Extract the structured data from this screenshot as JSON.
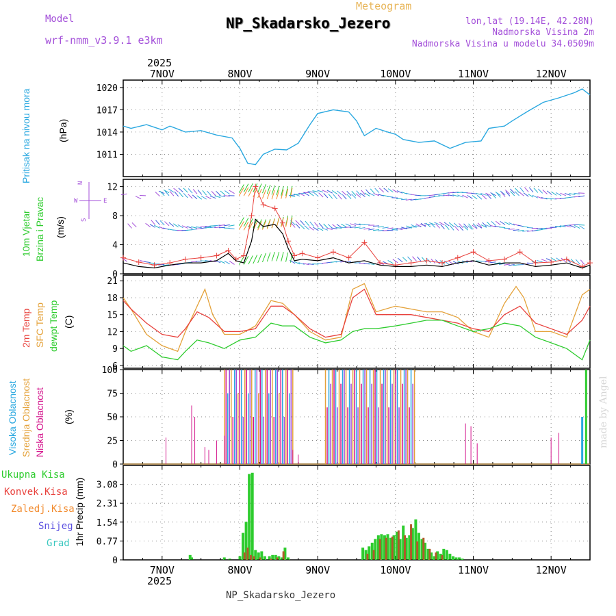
{
  "header": {
    "title": "NP_Skadarsko_Jezero",
    "subtitle": "Meteogram",
    "model_label": "Model",
    "model_name": "wrf-nmm_v3.9.1 e3km",
    "lonlat": "lon,lat (19.14E, 42.28N)",
    "elevation": "Nadmorska Visina 2m",
    "model_elevation": "Nadmorska Visina u modelu 34.0509m",
    "footer": "NP_Skadarsko_Jezero",
    "watermark": "made by Angel",
    "year_top": "2025",
    "year_bottom": "2025"
  },
  "colors": {
    "pressure": "#2aa8e0",
    "t2m": "#e8413c",
    "tsfc": "#e4a23a",
    "dewpoint": "#2ecc2e",
    "high_cloud": "#2aa8e0",
    "mid_cloud": "#e4a23a",
    "low_cloud": "#d4148c",
    "total_precip": "#2ecc2e",
    "conv_precip": "#e8413c",
    "frozen_precip": "#f28a2c",
    "snow": "#5a50e0",
    "hail": "#3cc8c0",
    "wind_speed": "#000000",
    "gust": "#e8413c",
    "purple": "#a34fd9"
  },
  "chart_data": [
    {
      "type": "line",
      "title": "Pritisak na nivou mora",
      "ylabel": "(hPa)",
      "ylim": [
        1008,
        1021
      ],
      "yticks": [
        "1011",
        "1014",
        "1017",
        "1020"
      ],
      "x_unit": "days since 2025-11-07 00:00",
      "xlim": [
        -0.5,
        5.5
      ],
      "xticks": [
        "7NOV",
        "8NOV",
        "9NOV",
        "10NOV",
        "11NOV",
        "12NOV"
      ],
      "series": [
        {
          "name": "MSLP",
          "x": [
            -0.5,
            -0.4,
            -0.2,
            0,
            0.1,
            0.3,
            0.5,
            0.7,
            0.9,
            1.0,
            1.1,
            1.2,
            1.3,
            1.45,
            1.6,
            1.75,
            1.9,
            2.0,
            2.2,
            2.4,
            2.5,
            2.6,
            2.75,
            2.9,
            3.0,
            3.1,
            3.3,
            3.5,
            3.7,
            3.9,
            4.1,
            4.2,
            4.4,
            4.5,
            4.7,
            4.9,
            5.1,
            5.3,
            5.4,
            5.5
          ],
          "values": [
            1014.8,
            1014.5,
            1015.0,
            1014.3,
            1014.8,
            1014.0,
            1014.2,
            1013.6,
            1013.2,
            1011.8,
            1009.8,
            1009.6,
            1011.0,
            1011.7,
            1011.6,
            1012.5,
            1015.0,
            1016.5,
            1017.0,
            1016.7,
            1015.5,
            1013.5,
            1014.5,
            1014.0,
            1013.7,
            1013.0,
            1012.6,
            1012.8,
            1011.8,
            1012.6,
            1012.8,
            1014.5,
            1014.8,
            1015.5,
            1016.8,
            1018.0,
            1018.6,
            1019.3,
            1019.8,
            1019.0
          ]
        }
      ]
    },
    {
      "type": "line",
      "title": "10m Vjetar Brzina i Pravac",
      "ylabel": "(m/s)",
      "ylim": [
        0,
        13
      ],
      "yticks": [
        "0",
        "4",
        "8",
        "12"
      ],
      "xticks": [
        "7NOV",
        "8NOV",
        "9NOV",
        "10NOV",
        "11NOV",
        "12NOV"
      ],
      "compass": {
        "n": "N",
        "s": "S",
        "e": "E",
        "w": "W"
      },
      "series": [
        {
          "name": "wind speed",
          "x": [
            -0.5,
            -0.3,
            -0.1,
            0.1,
            0.3,
            0.5,
            0.7,
            0.85,
            0.95,
            1.05,
            1.15,
            1.2,
            1.3,
            1.45,
            1.55,
            1.62,
            1.7,
            1.8,
            2.0,
            2.2,
            2.4,
            2.6,
            2.8,
            3.0,
            3.2,
            3.4,
            3.6,
            3.8,
            4.0,
            4.2,
            4.4,
            4.6,
            4.8,
            5.0,
            5.2,
            5.4,
            5.5
          ],
          "values": [
            1.5,
            1.0,
            0.8,
            1.2,
            1.5,
            1.5,
            1.8,
            2.8,
            1.8,
            1.5,
            4.5,
            7.5,
            6.5,
            6.8,
            5.5,
            3.5,
            1.8,
            2.0,
            1.8,
            2.2,
            1.5,
            1.8,
            1.2,
            1.0,
            1.0,
            1.2,
            1.0,
            1.5,
            1.8,
            1.2,
            1.5,
            1.5,
            1.0,
            1.2,
            1.5,
            0.8,
            1.2
          ]
        },
        {
          "name": "gust",
          "x": [
            -0.5,
            -0.3,
            -0.1,
            0.1,
            0.3,
            0.5,
            0.7,
            0.85,
            0.95,
            1.05,
            1.15,
            1.2,
            1.3,
            1.45,
            1.55,
            1.62,
            1.7,
            1.8,
            2.0,
            2.2,
            2.4,
            2.6,
            2.8,
            3.0,
            3.2,
            3.4,
            3.6,
            3.8,
            4.0,
            4.2,
            4.4,
            4.6,
            4.8,
            5.0,
            5.2,
            5.4,
            5.5
          ],
          "values": [
            2.2,
            1.6,
            1.2,
            1.5,
            2.0,
            2.2,
            2.5,
            3.2,
            2.0,
            2.5,
            8.0,
            12.0,
            9.5,
            9.0,
            7.0,
            4.5,
            2.5,
            2.8,
            2.2,
            3.0,
            2.2,
            4.3,
            1.5,
            1.2,
            1.5,
            1.8,
            1.5,
            2.2,
            3.0,
            1.8,
            2.0,
            3.0,
            1.5,
            1.6,
            2.0,
            1.0,
            1.5
          ]
        }
      ],
      "barb_rows_ms": [
        11,
        10.5,
        6.5,
        6.2,
        1.5
      ]
    },
    {
      "type": "line",
      "title": "2m Temp / SFC Temp / dewpt Temp",
      "ylabel": "(C)",
      "ylim": [
        5.5,
        22
      ],
      "yticks": [
        "6",
        "9",
        "12",
        "15",
        "18",
        "21"
      ],
      "xticks": [
        "7NOV",
        "8NOV",
        "9NOV",
        "10NOV",
        "11NOV",
        "12NOV"
      ],
      "series": [
        {
          "name": "2m Temp",
          "x": [
            -0.5,
            -0.4,
            -0.2,
            0,
            0.2,
            0.3,
            0.45,
            0.6,
            0.8,
            1.0,
            1.2,
            1.4,
            1.55,
            1.7,
            1.9,
            2.1,
            2.3,
            2.45,
            2.6,
            2.75,
            3.0,
            3.2,
            3.4,
            3.6,
            3.8,
            4.0,
            4.2,
            4.4,
            4.6,
            4.8,
            5.0,
            5.2,
            5.4,
            5.5
          ],
          "values": [
            17.5,
            16.0,
            13.5,
            11.5,
            11.0,
            12.5,
            15.5,
            14.5,
            12.0,
            12.0,
            12.5,
            16.5,
            16.5,
            15.0,
            12.5,
            11.0,
            11.5,
            18.0,
            19.5,
            15.0,
            15.0,
            15.0,
            14.5,
            14.0,
            13.5,
            12.5,
            12.0,
            15.0,
            16.5,
            13.5,
            12.5,
            11.5,
            14.0,
            16.5
          ]
        },
        {
          "name": "SFC Temp",
          "x": [
            -0.5,
            -0.4,
            -0.2,
            0,
            0.2,
            0.3,
            0.45,
            0.55,
            0.65,
            0.8,
            1.0,
            1.2,
            1.4,
            1.55,
            1.7,
            1.9,
            2.1,
            2.3,
            2.45,
            2.6,
            2.75,
            3.0,
            3.2,
            3.4,
            3.6,
            3.8,
            4.0,
            4.2,
            4.4,
            4.55,
            4.65,
            4.8,
            5.0,
            5.2,
            5.4,
            5.5
          ],
          "values": [
            18.0,
            16.0,
            11.5,
            9.5,
            8.5,
            12.0,
            16.5,
            19.5,
            15.0,
            11.5,
            11.5,
            13.0,
            17.5,
            17.0,
            15.0,
            12.0,
            10.5,
            11.0,
            19.5,
            20.5,
            15.5,
            16.5,
            16.0,
            15.5,
            15.5,
            14.5,
            12.0,
            11.0,
            17.0,
            20.0,
            18.0,
            12.0,
            12.0,
            11.0,
            18.5,
            19.5
          ]
        },
        {
          "name": "dewpt Temp",
          "x": [
            -0.5,
            -0.4,
            -0.2,
            0,
            0.2,
            0.3,
            0.45,
            0.6,
            0.8,
            1.0,
            1.2,
            1.4,
            1.55,
            1.7,
            1.9,
            2.1,
            2.3,
            2.45,
            2.6,
            2.75,
            3.0,
            3.2,
            3.4,
            3.6,
            3.8,
            4.0,
            4.2,
            4.4,
            4.6,
            4.8,
            5.0,
            5.2,
            5.4,
            5.5
          ],
          "values": [
            9.5,
            8.5,
            9.5,
            7.5,
            7.0,
            8.5,
            10.5,
            10.0,
            9.0,
            10.5,
            11.0,
            13.5,
            13.0,
            13.0,
            11.0,
            10.0,
            10.5,
            12.0,
            12.5,
            12.5,
            13.0,
            13.5,
            14.0,
            14.0,
            13.0,
            12.0,
            12.5,
            13.5,
            13.0,
            11.0,
            10.0,
            9.0,
            7.0,
            10.5
          ]
        }
      ]
    },
    {
      "type": "bar",
      "title": "Visoka Oblacnost / Srednja Oblacnost / Niska Oblacnost",
      "ylabel": "(%)",
      "ylim": [
        0,
        100
      ],
      "yticks": [
        "0",
        "25",
        "50",
        "75",
        "100"
      ],
      "xticks": [
        "7NOV",
        "8NOV",
        "9NOV",
        "10NOV",
        "11NOV",
        "12NOV"
      ],
      "bursts": [
        {
          "x0": 0.8,
          "x1": 1.7,
          "values": [
            100,
            100,
            75,
            100,
            100,
            50
          ]
        },
        {
          "x0": 2.1,
          "x1": 3.25,
          "values": [
            100,
            60,
            100,
            85,
            100,
            100
          ]
        }
      ],
      "series": [
        {
          "name": "Niska",
          "x": [
            0.05,
            0.38,
            0.42,
            0.55,
            0.6,
            0.7,
            0.8,
            1.68,
            1.75,
            3.9,
            3.97,
            4.05,
            5.0,
            5.1
          ],
          "values": [
            28,
            62,
            50,
            18,
            15,
            25,
            30,
            15,
            10,
            43,
            40,
            22,
            28,
            33
          ]
        },
        {
          "name": "Visoka",
          "x": [
            5.4
          ],
          "values": [
            50
          ]
        },
        {
          "name": "Srednja",
          "x": [
            5.45
          ],
          "values": [
            100
          ]
        }
      ]
    },
    {
      "type": "bar",
      "title": "1hr Precip",
      "ylabel": "1hr Precip (mm)",
      "ylim": [
        0,
        3.85
      ],
      "yticks": [
        "0",
        "0.77",
        "1.54",
        "2.31",
        "3.08"
      ],
      "xticks": [
        "7NOV",
        "8NOV",
        "9NOV",
        "10NOV",
        "11NOV",
        "12NOV"
      ],
      "legend": [
        "Ukupna Kisa",
        "Konvek.Kisa",
        "Zaledj.Kisa",
        "Snijeg",
        "Grad"
      ],
      "series": [
        {
          "name": "Ukupna Kisa",
          "x": [
            0.36,
            0.38,
            0.8,
            0.87,
            1.0,
            1.04,
            1.08,
            1.12,
            1.16,
            1.2,
            1.24,
            1.28,
            1.32,
            1.38,
            1.42,
            1.46,
            1.5,
            1.54,
            1.58,
            1.62,
            2.58,
            2.62,
            2.66,
            2.7,
            2.74,
            2.78,
            2.82,
            2.86,
            2.9,
            2.94,
            2.98,
            3.02,
            3.06,
            3.1,
            3.14,
            3.18,
            3.22,
            3.26,
            3.3,
            3.34,
            3.38,
            3.42,
            3.46,
            3.5,
            3.54,
            3.58,
            3.62,
            3.66,
            3.7,
            3.74,
            3.78,
            3.82,
            3.86
          ],
          "values": [
            0.2,
            0.1,
            0.1,
            0.05,
            0.15,
            1.1,
            1.55,
            3.5,
            3.55,
            0.4,
            0.3,
            0.35,
            0.15,
            0.15,
            0.2,
            0.2,
            0.15,
            0.1,
            0.5,
            0.1,
            0.5,
            0.4,
            0.55,
            0.7,
            0.85,
            1.0,
            1.05,
            1.0,
            1.05,
            0.9,
            1.0,
            1.15,
            0.85,
            1.4,
            0.9,
            1.0,
            1.3,
            1.65,
            1.1,
            0.85,
            0.7,
            0.45,
            0.3,
            0.15,
            0.35,
            0.25,
            0.45,
            0.4,
            0.25,
            0.15,
            0.1,
            0.1,
            0.05
          ]
        },
        {
          "name": "Konvek.Kisa",
          "x": [
            1.06,
            1.1,
            1.14,
            1.18,
            1.26,
            1.4,
            1.48,
            1.56,
            2.64,
            2.72,
            2.8,
            2.88,
            2.96,
            3.04,
            3.12,
            3.2,
            3.28,
            3.36,
            3.44,
            3.52,
            3.6
          ],
          "values": [
            0.3,
            0.5,
            0.2,
            0.15,
            0.1,
            0.05,
            0.1,
            0.35,
            0.25,
            0.4,
            0.85,
            0.9,
            0.95,
            1.2,
            1.0,
            1.45,
            0.75,
            0.9,
            0.45,
            0.3,
            0.2
          ]
        }
      ]
    }
  ]
}
